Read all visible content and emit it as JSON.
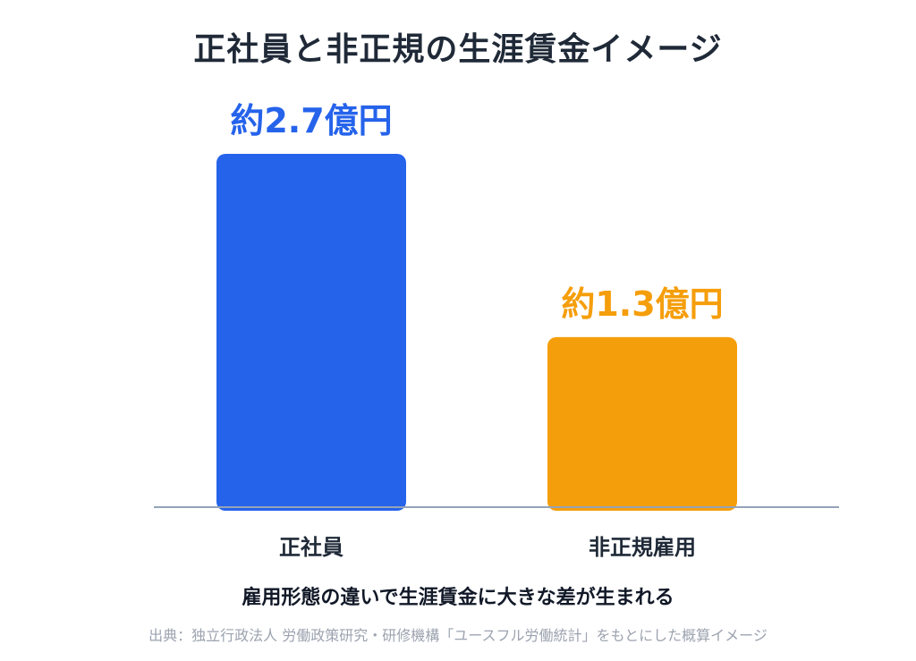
{
  "chart_data": {
    "type": "bar",
    "title": "正社員と非正規の生涯賃金イメージ",
    "categories": [
      "正社員",
      "非正規雇用"
    ],
    "values": [
      2.7,
      1.3
    ],
    "data_labels": [
      "約2.7億円",
      "約1.3億円"
    ],
    "colors": [
      "#2563eb",
      "#f59e0b"
    ],
    "label_colors": [
      "#2563eb",
      "#f59e0b"
    ],
    "ylim": [
      0,
      2.7
    ],
    "grid": false,
    "legend": "none"
  },
  "caption": "雇用形態の違いで生涯賃金に大きな差が生まれる",
  "source": "出典：独立行政法人 労働政策研究・研修機構「ユースフル労働統計」をもとにした概算イメージ",
  "axis_color": "#94a3b8"
}
